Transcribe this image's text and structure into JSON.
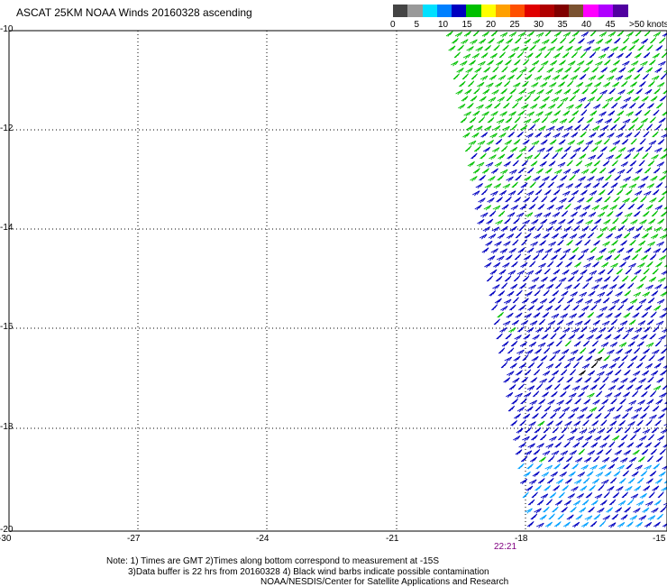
{
  "title": "ASCAT 25KM NOAA Winds 20160328 ascending",
  "legend": {
    "colors": [
      "#444444",
      "#999999",
      "#00e0ff",
      "#0080ff",
      "#0000c0",
      "#00c000",
      "#ffff00",
      "#ffa000",
      "#ff5000",
      "#e00000",
      "#b00000",
      "#800000",
      "#7a5230",
      "#ff00ff",
      "#b000ff",
      "#5000a0"
    ],
    "labels": [
      "0",
      "5",
      "10",
      "15",
      "20",
      "25",
      "30",
      "35",
      "40",
      "45",
      ">50 knots"
    ]
  },
  "axes": {
    "lon_ticks": [
      "-30",
      "-27",
      "-24",
      "-21",
      "-18",
      "-15"
    ],
    "lat_ticks": [
      "-10",
      "-12",
      "-14",
      "-16",
      "-18",
      "-20"
    ]
  },
  "time_label": "22:21",
  "notes": {
    "line1": "Note: 1) Times are GMT 2)Times along bottom correspond to measurement at -15S",
    "line2": "3)Data buffer is 22 hrs from 20160328 4) Black wind barbs indicate possible contamination",
    "line3": "NOAA/NESDIS/Center for Satellite Applications and Research"
  },
  "barb_colors": {
    "green": "#00c000",
    "blue": "#0000c0",
    "cyan": "#00a0ff",
    "black": "#000000"
  }
}
